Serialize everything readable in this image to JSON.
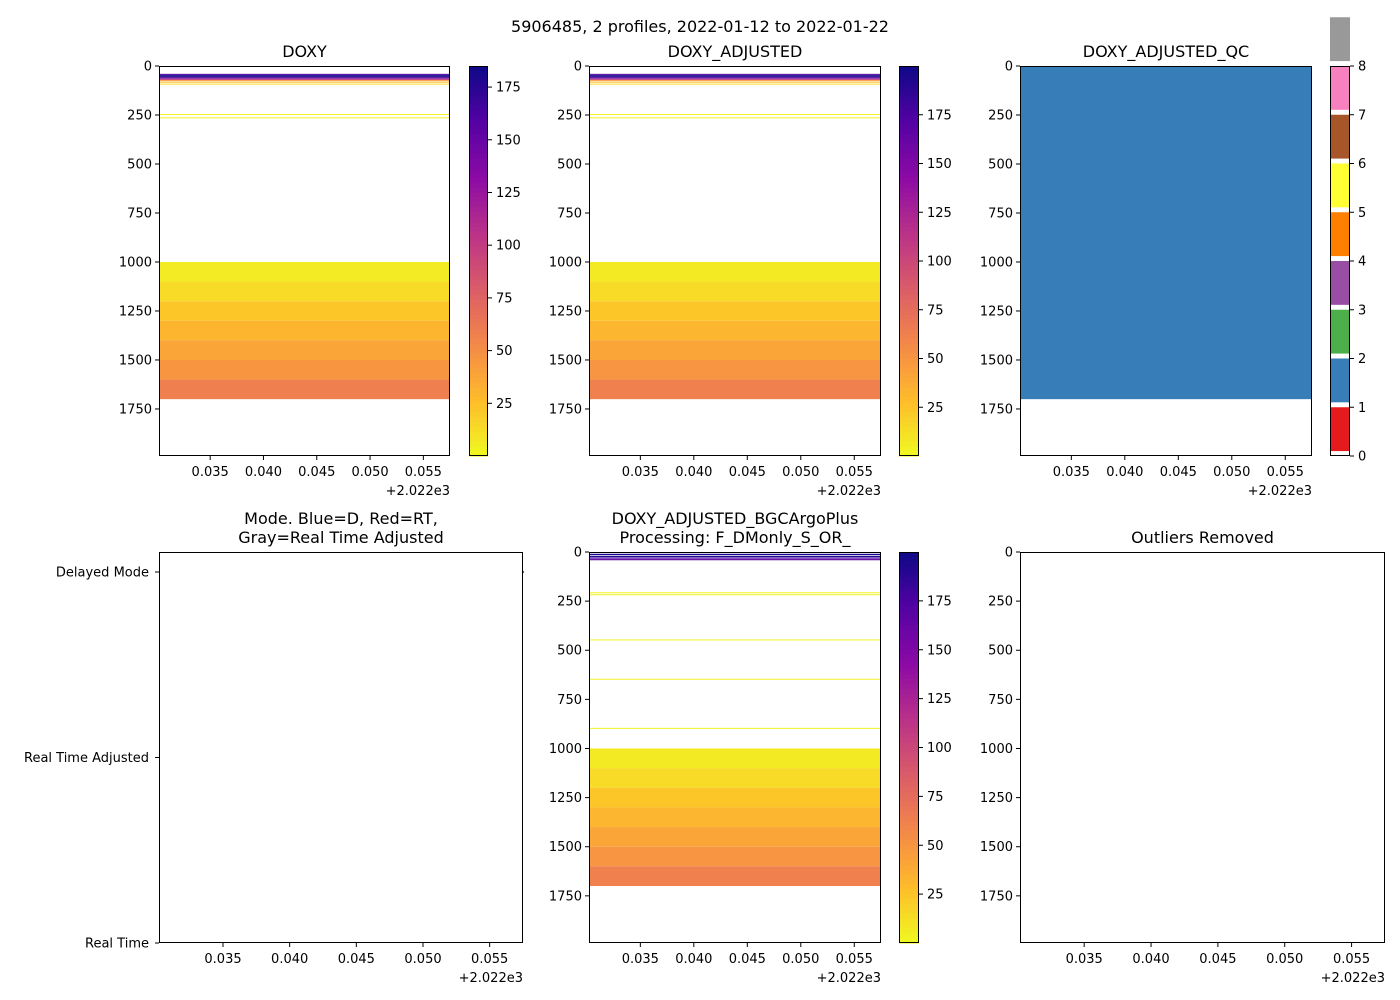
{
  "figure": {
    "suptitle": "5906485, 2 profiles, 2022-01-12 to 2022-01-22"
  },
  "chart_data": [
    {
      "type": "heatmap",
      "title": "DOXY",
      "x_ticks": [
        "0.035",
        "0.040",
        "0.045",
        "0.050",
        "0.055"
      ],
      "x_offset": "+2.022e3",
      "xlim": [
        2022.0302,
        2022.0575
      ],
      "ylim": [
        1990,
        0
      ],
      "y_ticks": [
        "0",
        "250",
        "500",
        "750",
        "1000",
        "1250",
        "1500",
        "1750"
      ],
      "colorbar": {
        "colormap": "plasma_r",
        "min": 0,
        "max": 185,
        "ticks": [
          "25",
          "50",
          "75",
          "100",
          "125",
          "150",
          "175"
        ]
      },
      "layers": [
        {
          "p0": 40,
          "p1": 45,
          "v": 160
        },
        {
          "p0": 45,
          "p1": 50,
          "v": 178
        },
        {
          "p0": 50,
          "p1": 55,
          "v": 183
        },
        {
          "p0": 55,
          "p1": 60,
          "v": 172
        },
        {
          "p0": 60,
          "p1": 64,
          "v": 140
        },
        {
          "p0": 66,
          "p1": 69,
          "v": 100
        },
        {
          "p0": 72,
          "p1": 75,
          "v": 45
        },
        {
          "p0": 80,
          "p1": 83,
          "v": 28
        },
        {
          "p0": 90,
          "p1": 93,
          "v": 12
        },
        {
          "p0": 245,
          "p1": 248,
          "v": 3
        },
        {
          "p0": 262,
          "p1": 265,
          "v": 3
        },
        {
          "p0": 1000,
          "p1": 1100,
          "v": 6
        },
        {
          "p0": 1100,
          "p1": 1200,
          "v": 13
        },
        {
          "p0": 1200,
          "p1": 1300,
          "v": 22
        },
        {
          "p0": 1300,
          "p1": 1400,
          "v": 30
        },
        {
          "p0": 1400,
          "p1": 1500,
          "v": 38
        },
        {
          "p0": 1500,
          "p1": 1600,
          "v": 46
        },
        {
          "p0": 1600,
          "p1": 1700,
          "v": 58
        }
      ]
    },
    {
      "type": "heatmap",
      "title": "DOXY_ADJUSTED",
      "x_ticks": [
        "0.035",
        "0.040",
        "0.045",
        "0.050",
        "0.055"
      ],
      "x_offset": "+2.022e3",
      "xlim": [
        2022.0302,
        2022.0575
      ],
      "ylim": [
        1990,
        0
      ],
      "y_ticks": [
        "0",
        "250",
        "500",
        "750",
        "1000",
        "1250",
        "1500",
        "1750"
      ],
      "colorbar": {
        "colormap": "plasma_r",
        "min": 0,
        "max": 200,
        "ticks": [
          "25",
          "50",
          "75",
          "100",
          "125",
          "150",
          "175"
        ]
      },
      "layers": [
        {
          "p0": 40,
          "p1": 45,
          "v": 170
        },
        {
          "p0": 45,
          "p1": 50,
          "v": 190
        },
        {
          "p0": 50,
          "p1": 55,
          "v": 197
        },
        {
          "p0": 55,
          "p1": 60,
          "v": 185
        },
        {
          "p0": 60,
          "p1": 64,
          "v": 150
        },
        {
          "p0": 66,
          "p1": 69,
          "v": 105
        },
        {
          "p0": 72,
          "p1": 75,
          "v": 48
        },
        {
          "p0": 80,
          "p1": 83,
          "v": 30
        },
        {
          "p0": 90,
          "p1": 93,
          "v": 12
        },
        {
          "p0": 245,
          "p1": 248,
          "v": 3
        },
        {
          "p0": 262,
          "p1": 265,
          "v": 3
        },
        {
          "p0": 1000,
          "p1": 1100,
          "v": 7
        },
        {
          "p0": 1100,
          "p1": 1200,
          "v": 14
        },
        {
          "p0": 1200,
          "p1": 1300,
          "v": 24
        },
        {
          "p0": 1300,
          "p1": 1400,
          "v": 32
        },
        {
          "p0": 1400,
          "p1": 1500,
          "v": 41
        },
        {
          "p0": 1500,
          "p1": 1600,
          "v": 50
        },
        {
          "p0": 1600,
          "p1": 1700,
          "v": 62
        }
      ]
    },
    {
      "type": "heatmap",
      "title": "DOXY_ADJUSTED_QC",
      "x_ticks": [
        "0.035",
        "0.040",
        "0.045",
        "0.050",
        "0.055"
      ],
      "x_offset": "+2.022e3",
      "xlim": [
        2022.0302,
        2022.0575
      ],
      "ylim": [
        1990,
        0
      ],
      "y_ticks": [
        "0",
        "250",
        "500",
        "750",
        "1000",
        "1250",
        "1500",
        "1750"
      ],
      "colorbar": {
        "type": "categorical",
        "min": 0,
        "max": 8,
        "ticks": [
          "0",
          "1",
          "2",
          "3",
          "4",
          "5",
          "6",
          "7",
          "8"
        ],
        "colors": [
          "#e41a1c",
          "#377eb8",
          "#4daf4a",
          "#984ea3",
          "#ff7f00",
          "#ffff33",
          "#a65628",
          "#f781bf",
          "#999999"
        ]
      },
      "layers": [
        {
          "p0": 0,
          "p1": 1700,
          "v": 1
        }
      ]
    },
    {
      "type": "scatter",
      "title": [
        "Mode. Blue=D, Red=RT,",
        "Gray=Real Time Adjusted"
      ],
      "x_ticks": [
        "0.035",
        "0.040",
        "0.045",
        "0.050",
        "0.055"
      ],
      "x_offset": "+2.022e3",
      "xlim": [
        2022.0302,
        2022.0575
      ],
      "y_categories": [
        "Delayed Mode",
        "Real Time Adjusted",
        "Real Time"
      ],
      "points": [
        {
          "x": 2022.0575,
          "mode": "Delayed Mode",
          "color": "#1f77b4"
        }
      ]
    },
    {
      "type": "heatmap",
      "title": [
        "DOXY_ADJUSTED_BGCArgoPlus",
        "Processing: F_DMonly_S_OR_"
      ],
      "x_ticks": [
        "0.035",
        "0.040",
        "0.045",
        "0.050",
        "0.055"
      ],
      "x_offset": "+2.022e3",
      "xlim": [
        2022.0302,
        2022.0575
      ],
      "ylim": [
        1990,
        0
      ],
      "y_ticks": [
        "0",
        "250",
        "500",
        "750",
        "1000",
        "1250",
        "1500",
        "1750"
      ],
      "colorbar": {
        "colormap": "plasma_r",
        "min": 0,
        "max": 200,
        "ticks": [
          "25",
          "50",
          "75",
          "100",
          "125",
          "150",
          "175"
        ]
      },
      "layers": [
        {
          "p0": 0,
          "p1": 6,
          "v": 180
        },
        {
          "p0": 10,
          "p1": 16,
          "v": 197
        },
        {
          "p0": 20,
          "p1": 26,
          "v": 192
        },
        {
          "p0": 28,
          "p1": 34,
          "v": 175
        },
        {
          "p0": 36,
          "p1": 42,
          "v": 165
        },
        {
          "p0": 205,
          "p1": 207,
          "v": 3
        },
        {
          "p0": 215,
          "p1": 217,
          "v": 3
        },
        {
          "p0": 445,
          "p1": 447,
          "v": 3
        },
        {
          "p0": 645,
          "p1": 647,
          "v": 3
        },
        {
          "p0": 895,
          "p1": 897,
          "v": 3
        },
        {
          "p0": 1000,
          "p1": 1100,
          "v": 7
        },
        {
          "p0": 1100,
          "p1": 1200,
          "v": 14
        },
        {
          "p0": 1200,
          "p1": 1300,
          "v": 24
        },
        {
          "p0": 1300,
          "p1": 1400,
          "v": 32
        },
        {
          "p0": 1400,
          "p1": 1500,
          "v": 41
        },
        {
          "p0": 1500,
          "p1": 1600,
          "v": 50
        },
        {
          "p0": 1600,
          "p1": 1700,
          "v": 62
        }
      ]
    },
    {
      "type": "heatmap",
      "title": "Outliers Removed",
      "x_ticks": [
        "0.035",
        "0.040",
        "0.045",
        "0.050",
        "0.055"
      ],
      "x_offset": "+2.022e3",
      "xlim": [
        2022.0302,
        2022.0575
      ],
      "ylim": [
        1990,
        0
      ],
      "y_ticks": [
        "0",
        "250",
        "500",
        "750",
        "1000",
        "1250",
        "1500",
        "1750"
      ],
      "layers": []
    }
  ]
}
